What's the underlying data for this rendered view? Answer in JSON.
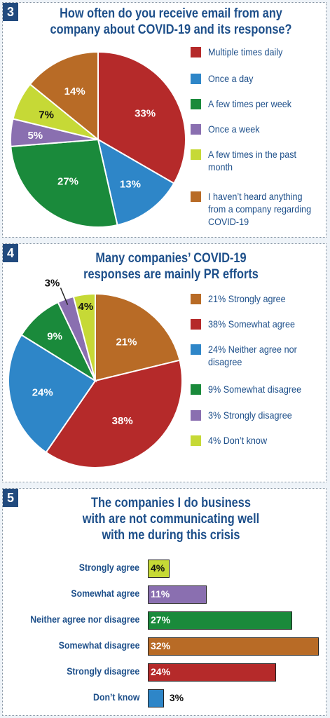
{
  "colors": {
    "navy": "#1d4f8a",
    "red": "#b52a2a",
    "blue": "#2e86c8",
    "green": "#1a8a3b",
    "purple": "#8a6fb0",
    "lime": "#c6d936",
    "orange": "#b86b26"
  },
  "charts": [
    {
      "number": "3",
      "title_lines": [
        "How often do you receive email from any",
        "company about COVID-19 and its response?"
      ]
    },
    {
      "number": "4",
      "title_lines": [
        "Many companies’ COVID-19",
        "responses are mainly PR efforts"
      ]
    },
    {
      "number": "5",
      "title_lines": [
        "The companies I do business",
        "with are not communicating well",
        "with me during this crisis"
      ]
    }
  ],
  "chart_data": [
    {
      "type": "pie",
      "title": "How often do you receive email from any company about COVID-19 and its response?",
      "legend_placement": "right",
      "slices": [
        {
          "label": "Multiple times daily",
          "value": 33,
          "display": "33%",
          "color": "#b52a2a"
        },
        {
          "label": "Once a day",
          "value": 13,
          "display": "13%",
          "color": "#2e86c8"
        },
        {
          "label": "A few times per week",
          "value": 27,
          "display": "27%",
          "color": "#1a8a3b"
        },
        {
          "label": "Once a week",
          "value": 5,
          "display": "5%",
          "color": "#8a6fb0"
        },
        {
          "label": "A few times in the past month",
          "value": 7,
          "display": "7%",
          "color": "#c6d936"
        },
        {
          "label": "I haven’t heard anything from a company regarding COVID-19",
          "value": 14,
          "display": "14%",
          "color": "#b86b26"
        }
      ]
    },
    {
      "type": "pie",
      "title": "Many companies’ COVID-19 responses are mainly PR efforts",
      "legend_placement": "right",
      "slices": [
        {
          "label": "21% Strongly agree",
          "value": 21,
          "display": "21%",
          "color": "#b86b26"
        },
        {
          "label": "38% Somewhat agree",
          "value": 38,
          "display": "38%",
          "color": "#b52a2a"
        },
        {
          "label": "24% Neither agree nor disagree",
          "value": 24,
          "display": "24%",
          "color": "#2e86c8"
        },
        {
          "label": "9% Somewhat disagree",
          "value": 9,
          "display": "9%",
          "color": "#1a8a3b"
        },
        {
          "label": "3% Strongly disagree",
          "value": 3,
          "display": "3%",
          "color": "#8a6fb0"
        },
        {
          "label": "4% Don’t know",
          "value": 4,
          "display": "4%",
          "color": "#c6d936"
        }
      ]
    },
    {
      "type": "bar",
      "orientation": "horizontal",
      "title": "The companies I do business with are not communicating well with me during this crisis",
      "categories": [
        "Strongly agree",
        "Somewhat agree",
        "Neither agree nor disagree",
        "Somewhat disagree",
        "Strongly disagree",
        "Don’t know"
      ],
      "values": [
        4,
        11,
        27,
        32,
        24,
        3
      ],
      "labels": [
        "4%",
        "11%",
        "27%",
        "32%",
        "24%",
        "3%"
      ],
      "colors": [
        "#c6d936",
        "#8a6fb0",
        "#1a8a3b",
        "#b86b26",
        "#b52a2a",
        "#2e86c8"
      ],
      "xlim": [
        0,
        32
      ]
    }
  ]
}
